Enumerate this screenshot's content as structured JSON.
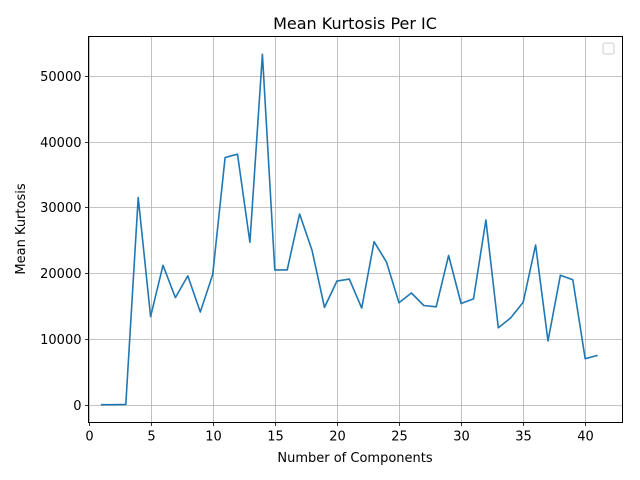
{
  "chart_data": {
    "type": "line",
    "title": "Mean Kurtosis Per IC",
    "xlabel": "Number of Components",
    "ylabel": "Mean Kurtosis",
    "xlim": [
      0,
      43
    ],
    "ylim": [
      -2700,
      56000
    ],
    "xticks": [
      0,
      5,
      10,
      15,
      20,
      25,
      30,
      35,
      40
    ],
    "yticks": [
      0,
      10000,
      20000,
      30000,
      40000,
      50000
    ],
    "xtick_labels": [
      "0",
      "5",
      "10",
      "15",
      "20",
      "25",
      "30",
      "35",
      "40"
    ],
    "ytick_labels": [
      "0",
      "10000",
      "20000",
      "30000",
      "40000",
      "50000"
    ],
    "grid": true,
    "legend": "top-right",
    "line_color": "#1f77b4",
    "series": [
      {
        "x": [
          1,
          2,
          3,
          4,
          5,
          6,
          7,
          8,
          9,
          10,
          11,
          12,
          13,
          14,
          15,
          16,
          17,
          18,
          19,
          20,
          21,
          22,
          23,
          24,
          25,
          26,
          27,
          28,
          29,
          30,
          31,
          32,
          33,
          34,
          35,
          36,
          37,
          38,
          39,
          40,
          41
        ],
        "values": [
          0,
          0,
          50,
          31500,
          13400,
          21200,
          16300,
          19600,
          14100,
          19800,
          37600,
          38100,
          24700,
          53300,
          20500,
          20500,
          29000,
          23500,
          14800,
          18800,
          19100,
          14700,
          24800,
          21700,
          15500,
          17000,
          15100,
          14900,
          22700,
          15400,
          16100,
          28100,
          11700,
          13200,
          15600,
          24300,
          9700,
          19700,
          19000,
          7000,
          7500
        ]
      }
    ]
  }
}
